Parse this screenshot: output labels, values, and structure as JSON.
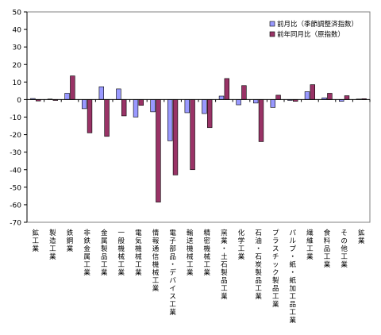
{
  "chart_data": {
    "type": "bar",
    "ylim": [
      -70,
      50
    ],
    "yticks": [
      50,
      40,
      30,
      20,
      10,
      0,
      -10,
      -20,
      -30,
      -40,
      -50,
      -60,
      -70
    ],
    "legend_position": "top-right",
    "categories": [
      "鉱工業",
      "製造工業",
      "鉄鋼業",
      "非鉄金属工業",
      "金属製品工業",
      "一般機械工業",
      "電気機械工業",
      "情報通信機械工業",
      "電子部品・デバイス工業",
      "輸送機械工業",
      "精密機械工業",
      "窯業・土石製品工業",
      "化学工業",
      "石油・石炭製品工業",
      "プラスチック製品工業",
      "パルプ・紙・紙加工品工業",
      "繊維工業",
      "食料品工業",
      "その他工業",
      "鉱業"
    ],
    "series": [
      {
        "name": "前月比（季節調整済指数）",
        "color": "#9999ff",
        "values": [
          0.6,
          0.3,
          3.6,
          -5.2,
          7.3,
          6.1,
          -10.0,
          -7.0,
          -23.5,
          -7.5,
          -8.0,
          2.0,
          -3.0,
          -2.0,
          -4.5,
          -0.5,
          4.5,
          1.0,
          -1.0,
          0.3
        ]
      },
      {
        "name": "前年同月比（原指数）",
        "color": "#993366",
        "values": [
          -0.8,
          -0.5,
          13.5,
          -19.0,
          -21.0,
          -9.3,
          -3.3,
          -58.5,
          -43.0,
          -40.0,
          -16.0,
          12.0,
          8.0,
          -24.0,
          2.5,
          -1.0,
          8.5,
          3.6,
          2.2,
          0.5
        ]
      }
    ]
  }
}
